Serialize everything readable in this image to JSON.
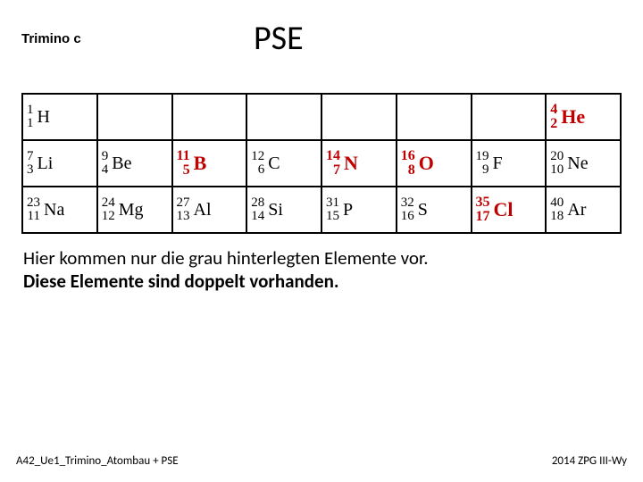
{
  "header": {
    "label": "Trimino c",
    "title": "PSE"
  },
  "colors": {
    "gray_cell": "#cdcdcd",
    "red_text": "#c00000",
    "border": "#000000",
    "background": "#ffffff"
  },
  "pse": {
    "columns": 8,
    "rows": [
      [
        {
          "mass": "1",
          "z": "1",
          "sym": "H",
          "gray": true,
          "red": false
        },
        {
          "empty": true
        },
        {
          "empty": true
        },
        {
          "empty": true
        },
        {
          "empty": true
        },
        {
          "empty": true
        },
        {
          "empty": true
        },
        {
          "mass": "4",
          "z": "2",
          "sym": "He",
          "gray": false,
          "red": true
        }
      ],
      [
        {
          "mass": "7",
          "z": "3",
          "sym": "Li",
          "gray": true,
          "red": false
        },
        {
          "mass": "9",
          "z": "4",
          "sym": "Be",
          "gray": true,
          "red": false
        },
        {
          "mass": "11",
          "z": "5",
          "sym": "B",
          "gray": false,
          "red": true
        },
        {
          "mass": "12",
          "z": "6",
          "sym": "C",
          "gray": true,
          "red": false
        },
        {
          "mass": "14",
          "z": "7",
          "sym": "N",
          "gray": false,
          "red": true
        },
        {
          "mass": "16",
          "z": "8",
          "sym": "O",
          "gray": false,
          "red": true
        },
        {
          "mass": "19",
          "z": "9",
          "sym": "F",
          "gray": true,
          "red": false
        },
        {
          "mass": "20",
          "z": "10",
          "sym": "Ne",
          "gray": true,
          "red": false
        }
      ],
      [
        {
          "mass": "23",
          "z": "11",
          "sym": "Na",
          "gray": true,
          "red": false
        },
        {
          "mass": "24",
          "z": "12",
          "sym": "Mg",
          "gray": true,
          "red": false
        },
        {
          "mass": "27",
          "z": "13",
          "sym": "Al",
          "gray": true,
          "red": false
        },
        {
          "mass": "28",
          "z": "14",
          "sym": "Si",
          "gray": true,
          "red": false
        },
        {
          "mass": "31",
          "z": "15",
          "sym": "P",
          "gray": false,
          "red": false
        },
        {
          "mass": "32",
          "z": "16",
          "sym": "S",
          "gray": true,
          "red": false
        },
        {
          "mass": "35",
          "z": "17",
          "sym": "Cl",
          "gray": false,
          "red": true
        },
        {
          "mass": "40",
          "z": "18",
          "sym": "Ar",
          "gray": true,
          "red": false
        }
      ]
    ]
  },
  "caption": {
    "line1": "Hier kommen nur die grau hinterlegten Elemente vor.",
    "line2": "Diese Elemente sind doppelt vorhanden."
  },
  "footer": {
    "left": "A42_Ue1_Trimino_Atombau + PSE",
    "right": "2014 ZPG III-Wy"
  }
}
